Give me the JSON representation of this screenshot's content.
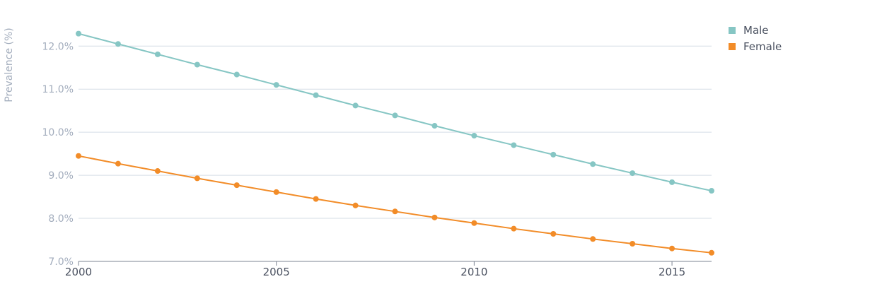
{
  "chart_data": {
    "type": "line",
    "title": "",
    "xlabel": "",
    "ylabel": "Prevalence (%)",
    "x": [
      2000,
      2001,
      2002,
      2003,
      2004,
      2005,
      2006,
      2007,
      2008,
      2009,
      2010,
      2011,
      2012,
      2013,
      2014,
      2015,
      2016
    ],
    "xlim": [
      2000,
      2016
    ],
    "ylim": [
      7.0,
      12.3
    ],
    "x_ticks": [
      2000,
      2005,
      2010,
      2015
    ],
    "x_tick_labels": [
      "2000",
      "2005",
      "2010",
      "2015"
    ],
    "y_ticks": [
      7,
      8,
      9,
      10,
      11,
      12
    ],
    "y_tick_labels": [
      "7.0%",
      "8.0%",
      "9.0%",
      "10.0%",
      "11.0%",
      "12.0%"
    ],
    "grid": "horizontal",
    "legend_position": "top-right",
    "series": [
      {
        "name": "Male",
        "color": "#86c6c4",
        "values": [
          12.29,
          12.05,
          11.81,
          11.57,
          11.34,
          11.1,
          10.86,
          10.62,
          10.39,
          10.15,
          9.92,
          9.7,
          9.48,
          9.26,
          9.05,
          8.84,
          8.64
        ]
      },
      {
        "name": "Female",
        "color": "#f28c28",
        "values": [
          9.45,
          9.27,
          9.1,
          8.93,
          8.77,
          8.61,
          8.45,
          8.3,
          8.16,
          8.02,
          7.89,
          7.76,
          7.64,
          7.52,
          7.41,
          7.3,
          7.2
        ]
      }
    ]
  }
}
